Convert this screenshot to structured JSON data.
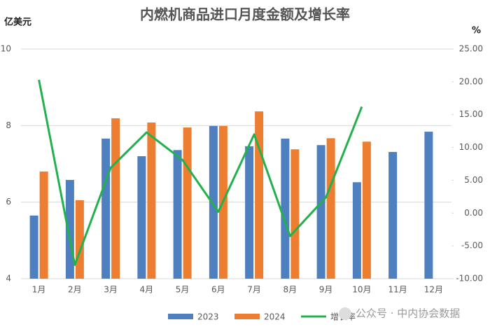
{
  "chart_data": {
    "type": "bar_line",
    "title": "内燃机商品进口月度金额及增长率",
    "y_label": "亿美元",
    "y2_label": "%",
    "categories": [
      "1月",
      "2月",
      "3月",
      "4月",
      "5月",
      "6月",
      "7月",
      "8月",
      "9月",
      "10月",
      "11月",
      "12月"
    ],
    "series": [
      {
        "name": "2023",
        "type": "bar",
        "color": "#4e7fbf",
        "values": [
          5.65,
          6.58,
          7.66,
          7.2,
          7.36,
          7.99,
          7.46,
          7.66,
          7.49,
          6.52,
          7.31,
          7.84
        ]
      },
      {
        "name": "2024",
        "type": "bar",
        "color": "#ec7d31",
        "values": [
          6.8,
          6.05,
          8.19,
          8.08,
          7.95,
          7.99,
          8.37,
          7.38,
          7.67,
          7.58,
          null,
          null
        ]
      },
      {
        "name": "增长率",
        "type": "line",
        "axis": "y2",
        "color": "#22b14c",
        "values": [
          20.3,
          -7.9,
          6.9,
          12.3,
          8.1,
          0.2,
          12.0,
          -3.5,
          2.4,
          16.2,
          null,
          null
        ]
      }
    ],
    "ylim": [
      4,
      10
    ],
    "yticks": [
      4,
      6,
      8,
      10
    ],
    "y2lim": [
      -10,
      25
    ],
    "y2ticks": [
      {
        "value": -10,
        "label": "-10.00"
      },
      {
        "value": -5,
        "label": "-5.00"
      },
      {
        "value": 0,
        "label": "0.00"
      },
      {
        "value": 5,
        "label": "5.00"
      },
      {
        "value": 10,
        "label": "10.00"
      },
      {
        "value": 15,
        "label": "15.00"
      },
      {
        "value": 20,
        "label": "20.00"
      },
      {
        "value": 25,
        "label": "25.00"
      }
    ],
    "grid": true,
    "watermark": "公众号 · 中内协会数据"
  }
}
